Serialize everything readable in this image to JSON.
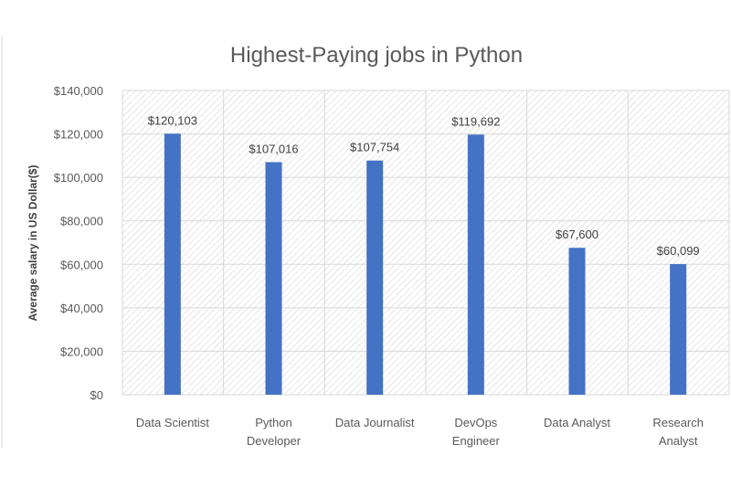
{
  "chart_data": {
    "type": "bar",
    "title": "Highest-Paying jobs in Python",
    "xlabel": "",
    "ylabel": "Average salary in US Dollar($)",
    "ylim": [
      0,
      140000
    ],
    "ytick_step": 20000,
    "yticks": [
      "$0",
      "$20,000",
      "$40,000",
      "$60,000",
      "$80,000",
      "$100,000",
      "$120,000",
      "$140,000"
    ],
    "categories": [
      [
        "Data Scientist"
      ],
      [
        "Python",
        "Developer"
      ],
      [
        "Data Journalist"
      ],
      [
        "DevOps",
        "Engineer"
      ],
      [
        "Data Analyst"
      ],
      [
        "Research",
        "Analyst"
      ]
    ],
    "values": [
      120103,
      107016,
      107754,
      119692,
      67600,
      60099
    ],
    "data_labels": [
      "$120,103",
      "$107,016",
      "$107,754",
      "$119,692",
      "$67,600",
      "$60,099"
    ],
    "grid": true,
    "legend": "none",
    "bar_color": "#4472C4"
  }
}
